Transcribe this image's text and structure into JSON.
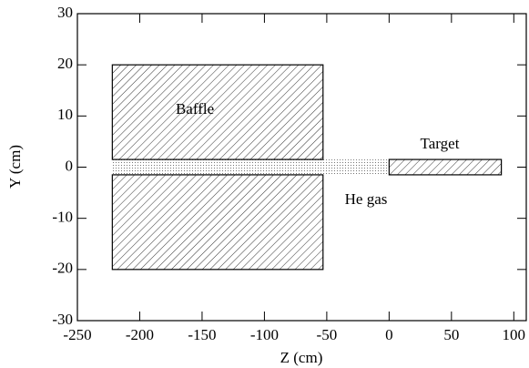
{
  "chart_data": {
    "type": "schematic",
    "x_label": "Z (cm)",
    "y_label": "Y (cm)",
    "xlim": [
      -250,
      110
    ],
    "xticks": [
      -250,
      -200,
      -150,
      -100,
      -50,
      0,
      50,
      100
    ],
    "ylim": [
      -30,
      30
    ],
    "yticks": [
      -30,
      -20,
      -10,
      0,
      10,
      20,
      30
    ],
    "regions": [
      {
        "name": "Baffle",
        "z": [
          -222,
          -53
        ],
        "y": [
          1.5,
          20
        ],
        "fill": "hatch"
      },
      {
        "z": [
          -222,
          -53
        ],
        "y": [
          -20,
          -1.5
        ],
        "fill": "hatch"
      },
      {
        "name": "He gas",
        "z": [
          -222,
          0
        ],
        "y": [
          -1.5,
          1.5
        ],
        "fill": "dots"
      },
      {
        "name": "Target",
        "z": [
          0,
          90
        ],
        "y": [
          -1.5,
          1.5
        ],
        "fill": "hatch"
      }
    ]
  }
}
